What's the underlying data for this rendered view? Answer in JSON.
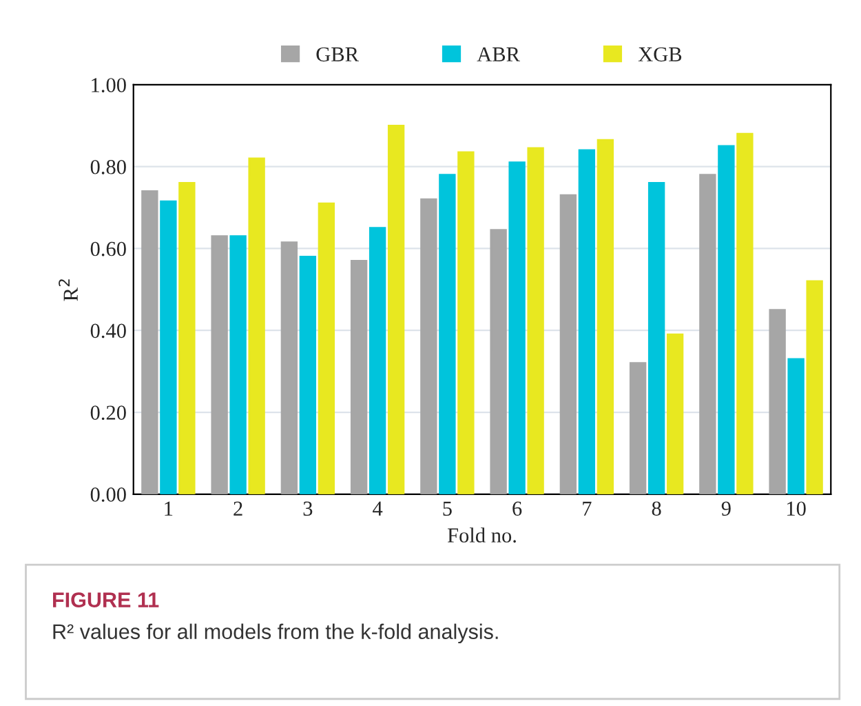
{
  "chart_data": {
    "type": "bar",
    "categories": [
      "1",
      "2",
      "3",
      "4",
      "5",
      "6",
      "7",
      "8",
      "9",
      "10"
    ],
    "series": [
      {
        "name": "GBR",
        "color": "#a6a6a6",
        "values": [
          0.74,
          0.63,
          0.615,
          0.57,
          0.72,
          0.645,
          0.73,
          0.32,
          0.78,
          0.45
        ]
      },
      {
        "name": "ABR",
        "color": "#00c4dc",
        "values": [
          0.715,
          0.63,
          0.58,
          0.65,
          0.78,
          0.81,
          0.84,
          0.76,
          0.85,
          0.33
        ]
      },
      {
        "name": "XGB",
        "color": "#e8e820",
        "values": [
          0.76,
          0.82,
          0.71,
          0.9,
          0.835,
          0.845,
          0.865,
          0.39,
          0.88,
          0.52
        ]
      }
    ],
    "xlabel": "Fold no.",
    "ylabel": "R$^{2}$",
    "ylim": [
      0,
      1
    ],
    "yticks": [
      {
        "value": 0,
        "label": "0.00"
      },
      {
        "value": 0.2,
        "label": "0.20"
      },
      {
        "value": 0.4,
        "label": "0.40"
      },
      {
        "value": 0.6,
        "label": "0.60"
      },
      {
        "value": 0.8,
        "label": "0.80"
      },
      {
        "value": 1,
        "label": "1.00"
      }
    ],
    "grid": "y",
    "legend": "top",
    "annotations": [
      "FIGURE 11",
      "R² values for all models from the k-fold analysis."
    ]
  }
}
